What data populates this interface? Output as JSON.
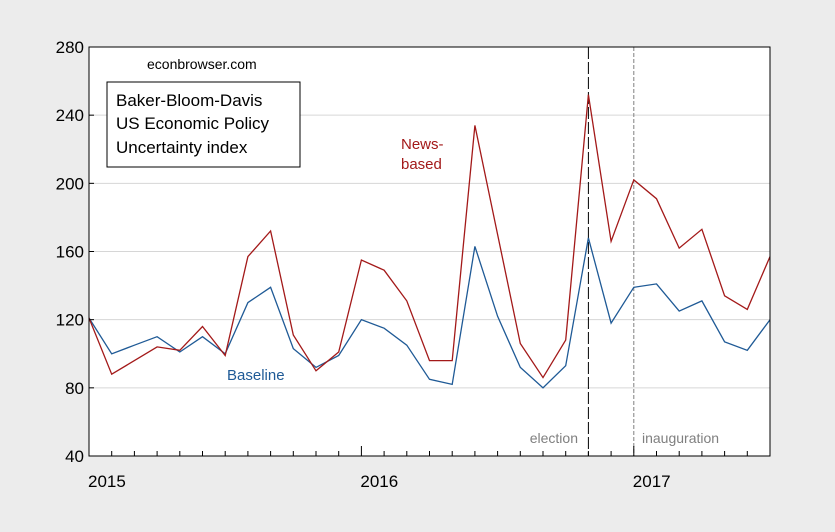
{
  "chart_data": {
    "type": "line",
    "source_note": "econbrowser.com",
    "title_box": [
      "Baker-Bloom-Davis",
      "US Economic Policy",
      "Uncertainty index"
    ],
    "x_labels": [
      "2015",
      "2016",
      "2017"
    ],
    "x_start": "2015-01",
    "x_end": "2017-07",
    "ylim": [
      40,
      280
    ],
    "yticks": [
      40,
      80,
      120,
      160,
      200,
      240,
      280
    ],
    "grid": "horizontal",
    "series": [
      {
        "name": "News-based",
        "label_lines": [
          "News-",
          "based"
        ],
        "color": "#a31919",
        "x": [
          "2015-01",
          "2015-02",
          "2015-03",
          "2015-04",
          "2015-05",
          "2015-06",
          "2015-07",
          "2015-08",
          "2015-09",
          "2015-10",
          "2015-11",
          "2015-12",
          "2016-01",
          "2016-02",
          "2016-03",
          "2016-04",
          "2016-05",
          "2016-06",
          "2016-07",
          "2016-08",
          "2016-09",
          "2016-10",
          "2016-11",
          "2016-12",
          "2017-01",
          "2017-02",
          "2017-03",
          "2017-04",
          "2017-05",
          "2017-06",
          "2017-07"
        ],
        "values": [
          121,
          88,
          96,
          104,
          102,
          116,
          99,
          157,
          172,
          111,
          90,
          101,
          155,
          149,
          131,
          96,
          96,
          234,
          170,
          106,
          86,
          108,
          252,
          166,
          202,
          191,
          162,
          173,
          134,
          126,
          157
        ]
      },
      {
        "name": "Baseline",
        "label_lines": [
          "Baseline"
        ],
        "color": "#1f5a96",
        "x": [
          "2015-01",
          "2015-02",
          "2015-03",
          "2015-04",
          "2015-05",
          "2015-06",
          "2015-07",
          "2015-08",
          "2015-09",
          "2015-10",
          "2015-11",
          "2015-12",
          "2016-01",
          "2016-02",
          "2016-03",
          "2016-04",
          "2016-05",
          "2016-06",
          "2016-07",
          "2016-08",
          "2016-09",
          "2016-10",
          "2016-11",
          "2016-12",
          "2017-01",
          "2017-02",
          "2017-03",
          "2017-04",
          "2017-05",
          "2017-06",
          "2017-07"
        ],
        "values": [
          121,
          100,
          105,
          110,
          101,
          110,
          100,
          130,
          139,
          103,
          92,
          99,
          120,
          115,
          105,
          85,
          82,
          163,
          122,
          92,
          80,
          93,
          168,
          118,
          139,
          141,
          125,
          131,
          107,
          102,
          120
        ]
      }
    ],
    "vlines": [
      {
        "label": "election",
        "x": "2016-11",
        "color": "#000000"
      },
      {
        "label": "inauguration",
        "x": "2017-01",
        "color": "#808080"
      }
    ]
  }
}
